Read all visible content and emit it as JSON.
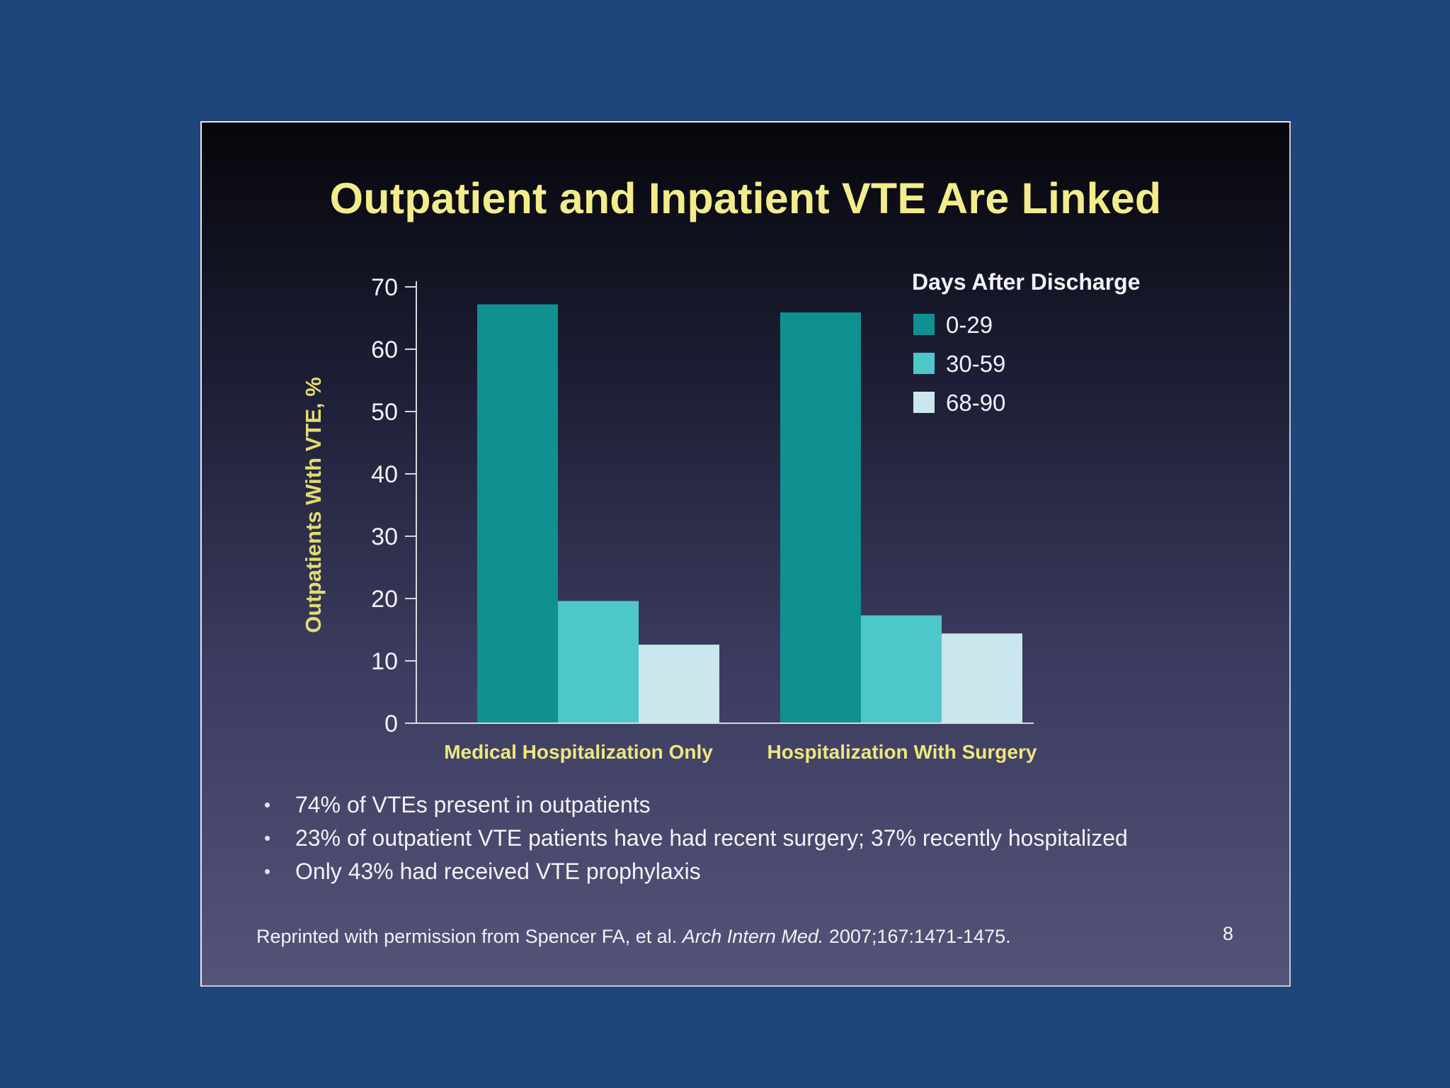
{
  "slide": {
    "title": "Outpatient and Inpatient VTE Are Linked",
    "bullets": [
      "74% of VTEs present in outpatients",
      "23% of outpatient VTE patients have had recent surgery; 37% recently hospitalized",
      "Only 43% had received VTE prophylaxis"
    ],
    "bullet_glyph": "•",
    "citation": {
      "prefix": "Reprinted with permission from Spencer FA, et al.",
      "journal": "Arch Intern Med.",
      "suffix": "2007;167:1471-1475."
    },
    "page_number": "8"
  },
  "colors": {
    "page_background": "#1f467b",
    "title": "#f3ec8a",
    "category_label": "#efe77c",
    "ylabel": "#e4dc6e",
    "text": "#f2f2f5"
  },
  "chart_data": {
    "type": "bar",
    "title": "",
    "xlabel": "",
    "ylabel": "Outpatients With VTE, %",
    "ylim": [
      0,
      70
    ],
    "yticks": [
      0,
      10,
      20,
      30,
      40,
      50,
      60,
      70
    ],
    "grid": false,
    "legend_title": "Days After Discharge",
    "legend_position": "top-right",
    "categories": [
      "Medical Hospitalization Only",
      "Hospitalization With Surgery"
    ],
    "series": [
      {
        "name": "0-29",
        "color": "#0e9190",
        "values": [
          67.2,
          65.9
        ]
      },
      {
        "name": "30-59",
        "color": "#4ec7cb",
        "values": [
          19.6,
          17.3
        ]
      },
      {
        "name": "68-90",
        "color": "#c9e7ec",
        "values": [
          12.6,
          14.4
        ]
      }
    ]
  }
}
